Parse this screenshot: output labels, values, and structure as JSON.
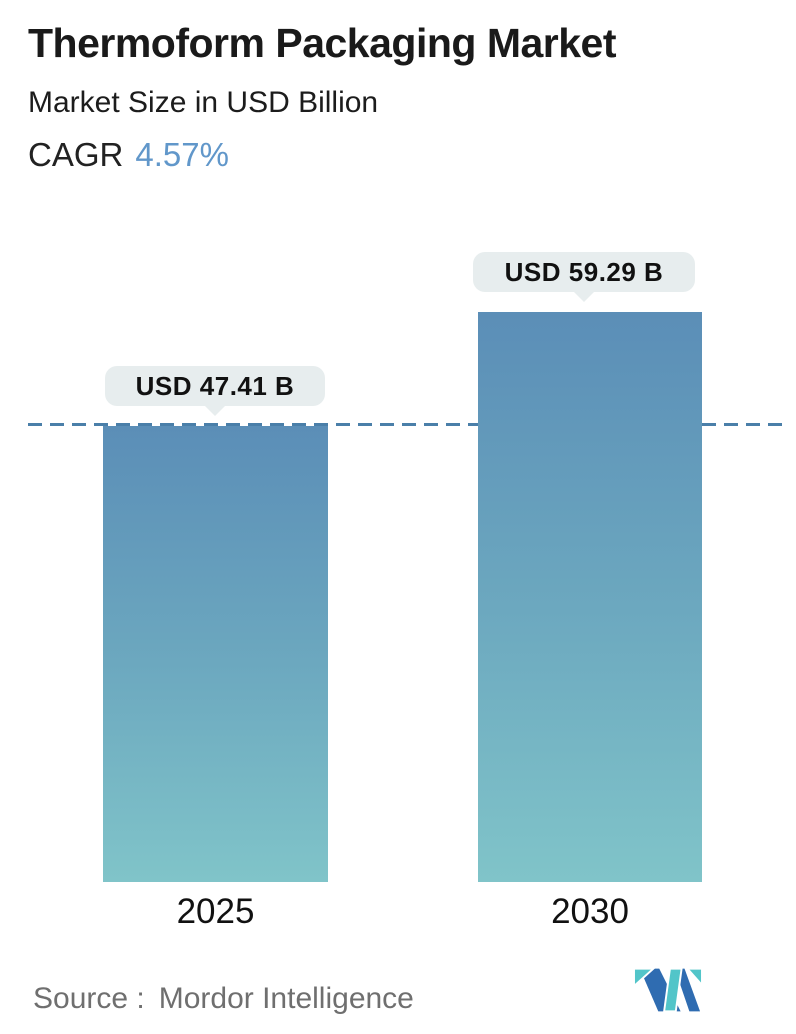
{
  "header": {
    "title": "Thermoform Packaging Market",
    "subtitle": "Market Size in USD Billion",
    "cagr_label": "CAGR",
    "cagr_value": "4.57%"
  },
  "chart_data": {
    "type": "bar",
    "title": "Thermoform Packaging Market",
    "subtitle": "Market Size in USD Billion",
    "cagr": "4.57%",
    "unit": "USD Billion",
    "categories": [
      "2025",
      "2030"
    ],
    "values": [
      47.41,
      59.29
    ],
    "bar_value_labels": [
      "USD 47.41 B",
      "USD 59.29 B"
    ],
    "reference_line": {
      "style": "dashed",
      "value": 47.41,
      "color": "#4a7fa9"
    },
    "grid": false,
    "legend": false,
    "bar_gradient_top": "#5b8eb7",
    "bar_gradient_bottom": "#80c4c9",
    "value_label_bg": "#e7edee",
    "cagr_accent_color": "#6197ca"
  },
  "footer": {
    "source_label": "Source :",
    "source_value": "Mordor Intelligence",
    "logo_name": "mordor-intelligence-logo",
    "logo_teal": "#52c5c9",
    "logo_blue": "#2f6cb1"
  }
}
